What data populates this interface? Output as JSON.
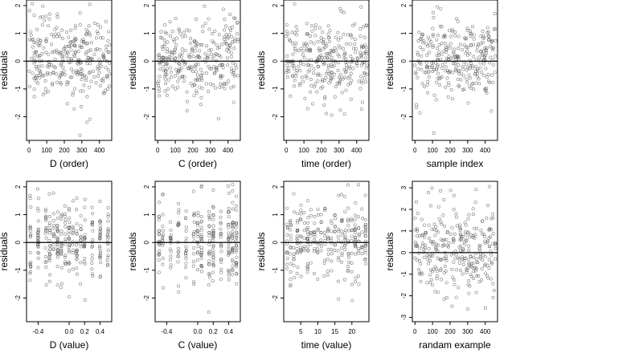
{
  "chart_data": [
    {
      "type": "scatter",
      "xlabel": "D (order)",
      "ylabel": "residuals",
      "xlim": [
        -15,
        470
      ],
      "ylim": [
        -2.85,
        2.2
      ],
      "xticks": [
        0,
        100,
        200,
        300,
        400
      ],
      "xtick_labels": [
        "0",
        "100",
        "200",
        "300",
        "400"
      ],
      "yticks": [
        -2,
        -1,
        0,
        1,
        2
      ],
      "ytick_labels": [
        "-2",
        "-1",
        "0",
        "1",
        "2"
      ],
      "hline": 0,
      "x_kind": "index",
      "seed": 11
    },
    {
      "type": "scatter",
      "xlabel": "C (order)",
      "ylabel": "residuals",
      "xlim": [
        -15,
        470
      ],
      "ylim": [
        -2.85,
        2.2
      ],
      "xticks": [
        0,
        100,
        200,
        300,
        400
      ],
      "xtick_labels": [
        "0",
        "100",
        "200",
        "300",
        "400"
      ],
      "yticks": [
        -2,
        -1,
        0,
        1,
        2
      ],
      "ytick_labels": [
        "-2",
        "-1",
        "0",
        "1",
        "2"
      ],
      "hline": 0,
      "x_kind": "index",
      "seed": 23
    },
    {
      "type": "scatter",
      "xlabel": "time (order)",
      "ylabel": "residuals",
      "xlim": [
        -15,
        470
      ],
      "ylim": [
        -2.85,
        2.2
      ],
      "xticks": [
        0,
        100,
        200,
        300,
        400
      ],
      "xtick_labels": [
        "0",
        "100",
        "200",
        "300",
        "400"
      ],
      "yticks": [
        -2,
        -1,
        0,
        1,
        2
      ],
      "ytick_labels": [
        "-2",
        "-1",
        "0",
        "1",
        "2"
      ],
      "hline": 0,
      "x_kind": "index",
      "seed": 37
    },
    {
      "type": "scatter",
      "xlabel": "sample index",
      "ylabel": "residuals",
      "xlim": [
        -15,
        470
      ],
      "ylim": [
        -2.85,
        2.2
      ],
      "xticks": [
        0,
        100,
        200,
        300,
        400
      ],
      "xtick_labels": [
        "0",
        "100",
        "200",
        "300",
        "400"
      ],
      "yticks": [
        -2,
        -1,
        0,
        1,
        2
      ],
      "ytick_labels": [
        "-2",
        "-1",
        "0",
        "1",
        "2"
      ],
      "hline": 0,
      "x_kind": "index",
      "seed": 41
    },
    {
      "type": "scatter",
      "xlabel": "D (value)",
      "ylabel": "residuals",
      "xlim": [
        -0.55,
        0.55
      ],
      "ylim": [
        -2.85,
        2.2
      ],
      "xticks": [
        -0.4,
        0,
        0.2,
        0.4
      ],
      "xtick_labels": [
        "-0.4",
        "0.0",
        "0.2",
        "0.4"
      ],
      "yticks": [
        -2,
        -1,
        0,
        1,
        2
      ],
      "ytick_labels": [
        "-2",
        "-1",
        "0",
        "1",
        "2"
      ],
      "hline": 0,
      "x_kind": "levels",
      "x_levels": [
        -0.5,
        -0.4,
        -0.3,
        -0.25,
        -0.2,
        -0.15,
        -0.1,
        -0.05,
        0,
        0.05,
        0.1,
        0.15,
        0.2,
        0.3,
        0.4,
        0.5
      ],
      "seed": 53
    },
    {
      "type": "scatter",
      "xlabel": "C (value)",
      "ylabel": "residuals",
      "xlim": [
        -0.55,
        0.55
      ],
      "ylim": [
        -2.85,
        2.2
      ],
      "xticks": [
        -0.4,
        0,
        0.2,
        0.4
      ],
      "xtick_labels": [
        "-0.4",
        "0.0",
        "0.2",
        "0.4"
      ],
      "yticks": [
        -2,
        -1,
        0,
        1,
        2
      ],
      "ytick_labels": [
        "-2",
        "-1",
        "0",
        "1",
        "2"
      ],
      "hline": 0,
      "x_kind": "levels",
      "x_levels": [
        -0.5,
        -0.45,
        -0.35,
        -0.25,
        -0.15,
        -0.05,
        0,
        0.05,
        0.15,
        0.2,
        0.3,
        0.4,
        0.45,
        0.5
      ],
      "seed": 67
    },
    {
      "type": "scatter",
      "xlabel": "time (value)",
      "ylabel": "residuals",
      "xlim": [
        0,
        25
      ],
      "ylim": [
        -2.85,
        2.2
      ],
      "xticks": [
        5,
        10,
        15,
        20
      ],
      "xtick_labels": [
        "5",
        "10",
        "15",
        "20"
      ],
      "yticks": [
        -2,
        -1,
        0,
        1,
        2
      ],
      "ytick_labels": [
        "-2",
        "-1",
        "0",
        "1",
        "2"
      ],
      "hline": 0,
      "x_kind": "levels",
      "x_levels": [
        1,
        2,
        3,
        4,
        5,
        6,
        7,
        8,
        9,
        10,
        11,
        12,
        13,
        14,
        15,
        16,
        17,
        18,
        19,
        20,
        21,
        22,
        23,
        24
      ],
      "seed": 79
    },
    {
      "type": "scatter",
      "xlabel": "randam example",
      "ylabel": "residuals",
      "xlim": [
        -15,
        470
      ],
      "ylim": [
        -3.2,
        3.3
      ],
      "xticks": [
        0,
        100,
        200,
        300,
        400
      ],
      "xtick_labels": [
        "0",
        "100",
        "200",
        "300",
        "400"
      ],
      "yticks": [
        -3,
        -2,
        -1,
        0,
        1,
        2,
        3
      ],
      "ytick_labels": [
        "-3",
        "-2",
        "-1",
        "0",
        "1",
        "2",
        "3"
      ],
      "hline": 0,
      "x_kind": "index",
      "seed": 97
    }
  ]
}
